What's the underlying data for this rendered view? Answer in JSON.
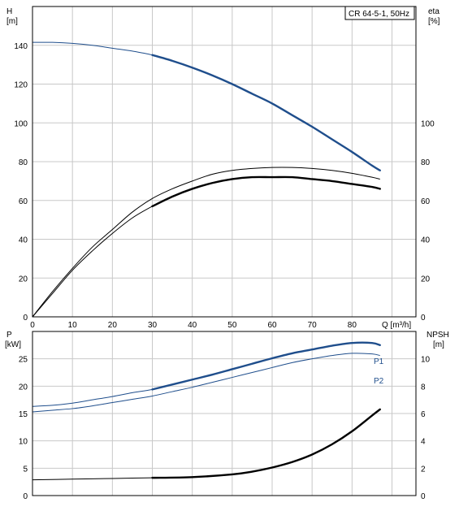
{
  "chart_data": [
    {
      "type": "line",
      "title": "CR 64-5-1, 50Hz",
      "left_axis": {
        "label_line1": "H",
        "label_line2": "[m]",
        "ticks": [
          "0",
          "20",
          "40",
          "60",
          "80",
          "100",
          "120",
          "140"
        ],
        "ylim": [
          0,
          160
        ]
      },
      "right_axis": {
        "label_line1": "eta",
        "label_line2": "[%]",
        "ticks": [
          "0",
          "20",
          "40",
          "60",
          "80",
          "100"
        ]
      },
      "x_axis": {
        "label": "Q [m³/h]",
        "ticks": [
          "0",
          "10",
          "20",
          "30",
          "40",
          "50",
          "60",
          "70",
          "80"
        ],
        "xlim": [
          0,
          96
        ]
      },
      "grid": true,
      "series": [
        {
          "axis": "left",
          "color": "#1f4e8c",
          "bold_from": 30,
          "x": [
            0,
            5,
            10,
            15,
            20,
            25,
            30,
            35,
            40,
            45,
            50,
            55,
            60,
            65,
            70,
            75,
            80,
            85,
            87
          ],
          "y": [
            141.5,
            141.5,
            141,
            140,
            138.5,
            137,
            135,
            132,
            128.5,
            124.5,
            120,
            115,
            110,
            104,
            98,
            91.5,
            85,
            78,
            75.5
          ]
        },
        {
          "axis": "right",
          "color": "#000000",
          "bold_from": null,
          "x": [
            0,
            5,
            10,
            15,
            20,
            25,
            30,
            35,
            40,
            45,
            50,
            55,
            60,
            65,
            70,
            75,
            80,
            85,
            87
          ],
          "y": [
            0,
            13,
            25,
            36,
            45,
            54,
            61,
            66,
            70,
            73.5,
            75.5,
            76.5,
            77,
            77,
            76.5,
            75.5,
            74,
            72,
            71
          ]
        },
        {
          "axis": "right",
          "color": "#000000",
          "bold_from": 30,
          "x": [
            0,
            5,
            10,
            15,
            20,
            25,
            30,
            35,
            40,
            45,
            50,
            55,
            60,
            65,
            70,
            75,
            80,
            85,
            87
          ],
          "y": [
            0,
            12,
            24,
            34,
            43,
            51,
            57,
            62,
            66,
            69,
            71,
            72,
            72,
            72,
            71,
            70,
            68.5,
            67,
            66
          ]
        }
      ]
    },
    {
      "type": "line",
      "left_axis": {
        "label_line1": "P",
        "label_line2": "[kW]",
        "ticks": [
          "0",
          "5",
          "10",
          "15",
          "20",
          "25"
        ],
        "ylim": [
          0,
          30
        ]
      },
      "right_axis": {
        "label_line1": "NPSH",
        "label_line2": "[m]",
        "ticks": [
          "0",
          "2",
          "4",
          "6",
          "8",
          "10"
        ]
      },
      "x_axis": {
        "xlim": [
          0,
          96
        ]
      },
      "grid": true,
      "series": [
        {
          "name": "P1",
          "axis": "left",
          "color": "#1f4e8c",
          "bold_from": 30,
          "x": [
            0,
            5,
            10,
            15,
            20,
            25,
            30,
            35,
            40,
            45,
            50,
            55,
            60,
            65,
            70,
            75,
            80,
            85,
            87
          ],
          "y": [
            16.3,
            16.5,
            16.9,
            17.5,
            18.1,
            18.8,
            19.4,
            20.3,
            21.2,
            22.1,
            23.1,
            24.1,
            25.1,
            26,
            26.7,
            27.4,
            27.9,
            27.9,
            27.5
          ]
        },
        {
          "name": "P2",
          "axis": "left",
          "color": "#1f4e8c",
          "bold_from": null,
          "x": [
            0,
            5,
            10,
            15,
            20,
            25,
            30,
            35,
            40,
            45,
            50,
            55,
            60,
            65,
            70,
            75,
            80,
            85,
            87
          ],
          "y": [
            15.3,
            15.6,
            15.9,
            16.4,
            17,
            17.6,
            18.2,
            19,
            19.8,
            20.7,
            21.6,
            22.5,
            23.4,
            24.3,
            25,
            25.6,
            26,
            25.9,
            25.6
          ]
        },
        {
          "axis": "right",
          "color": "#000000",
          "bold_from": 30,
          "x": [
            0,
            10,
            20,
            30,
            40,
            50,
            55,
            60,
            65,
            70,
            75,
            80,
            85,
            87
          ],
          "y": [
            1.15,
            1.2,
            1.25,
            1.3,
            1.35,
            1.55,
            1.75,
            2.05,
            2.45,
            3.0,
            3.75,
            4.7,
            5.85,
            6.3
          ]
        }
      ]
    }
  ]
}
